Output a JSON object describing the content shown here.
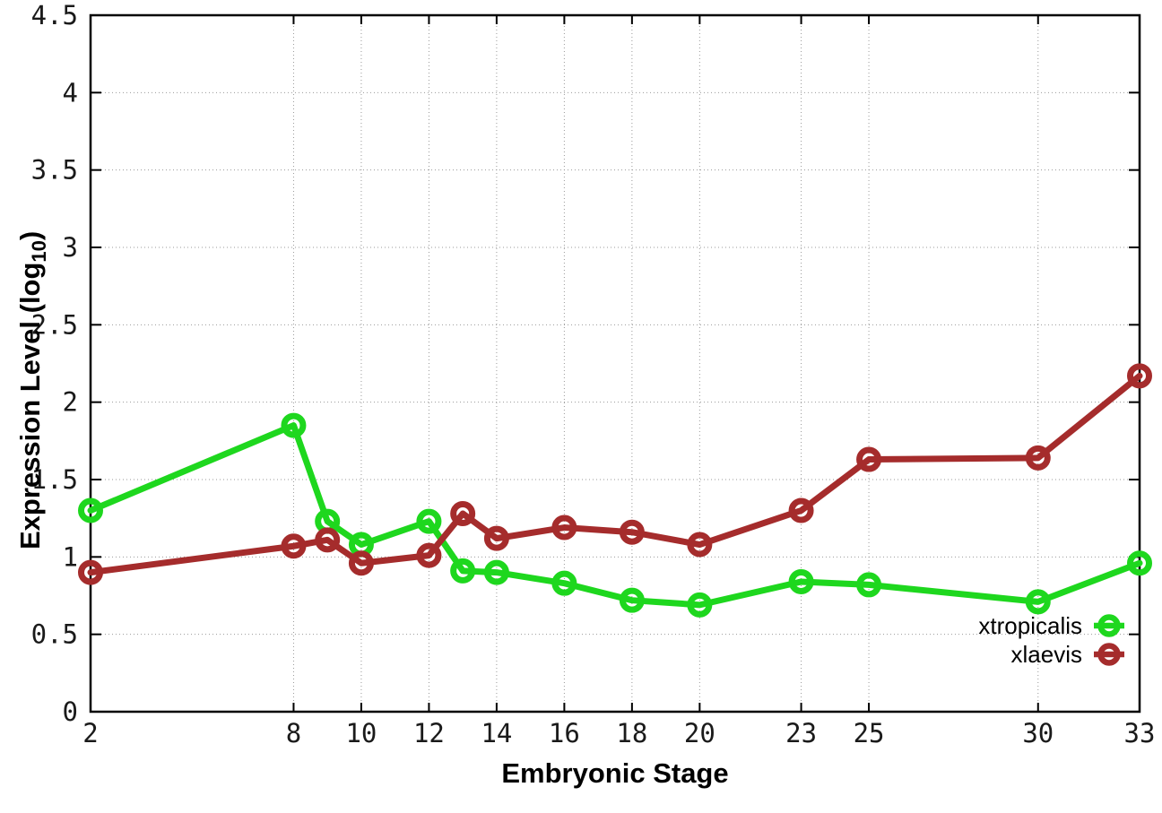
{
  "chart_data": {
    "type": "line",
    "xlabel": "Embryonic Stage",
    "ylabel": "Expression Level (log10)",
    "ylabel_parts": {
      "main": "Expression Level (log",
      "sub": "10",
      "close": ")"
    },
    "x": [
      2,
      8,
      9,
      10,
      12,
      13,
      14,
      16,
      18,
      20,
      23,
      25,
      30,
      33
    ],
    "series": [
      {
        "name": "xtropicalis",
        "color": "#1ed71e",
        "values": [
          1.3,
          1.85,
          1.23,
          1.08,
          1.23,
          0.91,
          0.9,
          0.83,
          0.72,
          0.69,
          0.84,
          0.82,
          0.71,
          0.96
        ]
      },
      {
        "name": "xlaevis",
        "color": "#a52c2c",
        "values": [
          0.9,
          1.07,
          1.11,
          0.96,
          1.01,
          1.28,
          1.12,
          1.19,
          1.16,
          1.08,
          1.3,
          1.63,
          1.64,
          2.17
        ]
      }
    ],
    "xlim": [
      2,
      33
    ],
    "ylim": [
      0,
      4.5
    ],
    "xticks": {
      "values": [
        2,
        8,
        10,
        12,
        14,
        16,
        18,
        20,
        23,
        25,
        30,
        33
      ],
      "labels": [
        "2",
        "8",
        "10",
        "12",
        "14",
        "16",
        "18",
        "20",
        "23",
        "25",
        "30",
        "33"
      ]
    },
    "yticks": {
      "values": [
        0,
        0.5,
        1,
        1.5,
        2,
        2.5,
        3,
        3.5,
        4,
        4.5
      ],
      "labels": [
        "0",
        "0.5",
        "1",
        "1.5",
        "2",
        "2.5",
        "3",
        "3.5",
        "4",
        "4.5"
      ]
    },
    "grid": true,
    "legend_position": "bottom-right",
    "marker": "open-circle",
    "grid_color": "#999999",
    "axis_color": "#000000"
  }
}
